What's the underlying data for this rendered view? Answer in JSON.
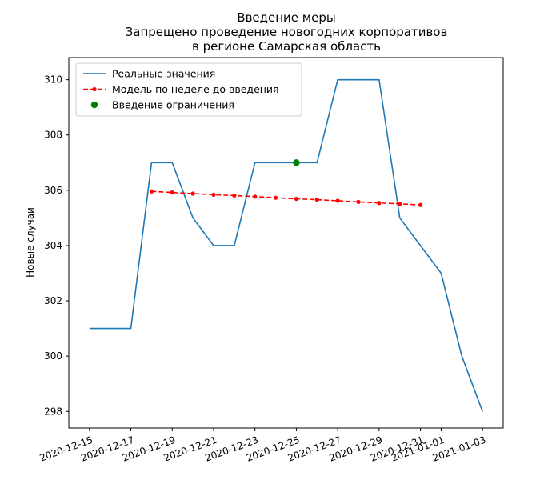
{
  "chart_data": {
    "type": "line",
    "title": [
      "Введение меры",
      "Запрещено проведение новогодних корпоративов",
      "в регионе Самарская область"
    ],
    "xlabel": "",
    "ylabel": "Новые случаи",
    "xlim": [
      "2020-12-14",
      "2021-01-04"
    ],
    "ylim": [
      297.4,
      310.8
    ],
    "x_ticks": [
      "2020-12-15",
      "2020-12-17",
      "2020-12-19",
      "2020-12-21",
      "2020-12-23",
      "2020-12-25",
      "2020-12-27",
      "2020-12-29",
      "2020-12-31",
      "2021-01-01",
      "2021-01-03"
    ],
    "y_ticks": [
      298,
      300,
      302,
      304,
      306,
      308,
      310
    ],
    "legend_position": "top-left",
    "series": [
      {
        "name": "Реальные значения",
        "kind": "line",
        "color": "#1f77b4",
        "x": [
          "2020-12-15",
          "2020-12-16",
          "2020-12-17",
          "2020-12-18",
          "2020-12-19",
          "2020-12-20",
          "2020-12-21",
          "2020-12-22",
          "2020-12-23",
          "2020-12-24",
          "2020-12-25",
          "2020-12-26",
          "2020-12-27",
          "2020-12-28",
          "2020-12-29",
          "2020-12-30",
          "2020-12-31",
          "2021-01-01",
          "2021-01-02",
          "2021-01-03"
        ],
        "y": [
          301,
          301,
          301,
          307,
          307,
          305,
          304,
          304,
          307,
          307,
          307,
          307,
          310,
          310,
          310,
          305,
          304,
          303,
          300,
          298
        ]
      },
      {
        "name": "Модель по неделе до введения",
        "kind": "dashed-line-markers",
        "color": "#ff0000",
        "x": [
          "2020-12-18",
          "2020-12-19",
          "2020-12-20",
          "2020-12-21",
          "2020-12-22",
          "2020-12-23",
          "2020-12-24",
          "2020-12-25",
          "2020-12-26",
          "2020-12-27",
          "2020-12-28",
          "2020-12-29",
          "2020-12-30",
          "2020-12-31"
        ],
        "y": [
          305.96,
          305.92,
          305.88,
          305.84,
          305.81,
          305.77,
          305.73,
          305.69,
          305.66,
          305.62,
          305.58,
          305.54,
          305.51,
          305.47
        ]
      },
      {
        "name": "Введение ограничения",
        "kind": "point",
        "color": "#008000",
        "x": [
          "2020-12-25"
        ],
        "y": [
          307
        ]
      }
    ]
  }
}
